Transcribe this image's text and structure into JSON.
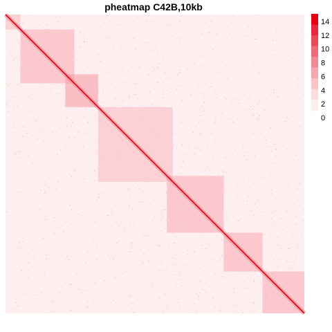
{
  "chart_data": {
    "type": "heatmap",
    "title": "pheatmap C42B,10kb",
    "xlabel": "",
    "ylabel": "",
    "value_range": [
      0,
      15
    ],
    "legend": {
      "placement": "right",
      "ticks": [
        "14",
        "12",
        "10",
        "8",
        "6",
        "4",
        "2",
        "0"
      ],
      "tick_values": [
        14,
        12,
        10,
        8,
        6,
        4,
        2,
        0
      ],
      "colors": [
        "#fdf0f0",
        "#fbdde0",
        "#f9c3c7",
        "#f6a7ae",
        "#f38a93",
        "#f06b77",
        "#ec4a59",
        "#e8283b",
        "#e60012"
      ]
    },
    "diagonal_value": 15,
    "domains": [
      {
        "start": 0.0,
        "end": 0.05,
        "value": 4
      },
      {
        "start": 0.05,
        "end": 0.23,
        "value": 5
      },
      {
        "start": 0.2,
        "end": 0.31,
        "value": 6
      },
      {
        "start": 0.31,
        "end": 0.56,
        "value": 4
      },
      {
        "start": 0.54,
        "end": 0.73,
        "value": 5
      },
      {
        "start": 0.73,
        "end": 0.86,
        "value": 5
      },
      {
        "start": 0.86,
        "end": 1.0,
        "value": 5
      }
    ],
    "background_value": 1,
    "grid": false
  }
}
